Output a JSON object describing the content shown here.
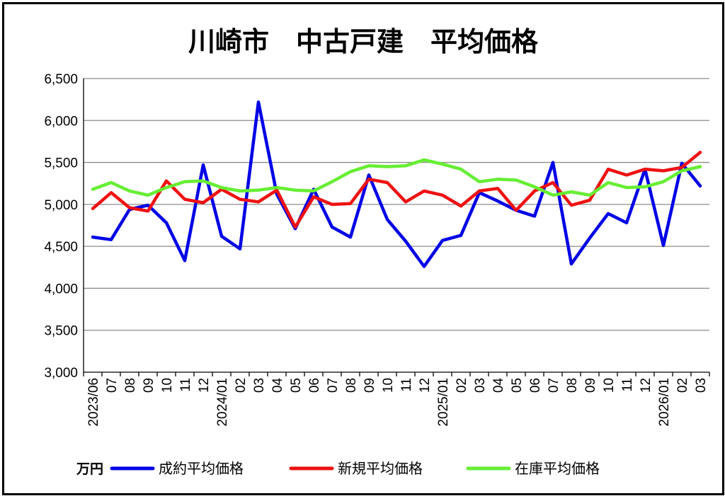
{
  "chart_data": {
    "type": "line",
    "title": "川崎市　中古戸建　平均価格",
    "unit_label": "万円",
    "ylim": [
      3000,
      6500
    ],
    "yticks": [
      3000,
      3500,
      4000,
      4500,
      5000,
      5500,
      6000,
      6500
    ],
    "ytick_labels": [
      "3,000",
      "3,500",
      "4,000",
      "4,500",
      "5,000",
      "5,500",
      "6,000",
      "6,500"
    ],
    "grid": true,
    "legend_position": "bottom",
    "x": [
      "2023/06",
      "07",
      "08",
      "09",
      "10",
      "11",
      "12",
      "2024/01",
      "02",
      "03",
      "04",
      "05",
      "06",
      "07",
      "08",
      "09",
      "10",
      "11",
      "12",
      "2025/01",
      "02",
      "03",
      "04",
      "05",
      "06",
      "07",
      "08",
      "09",
      "10",
      "11",
      "12",
      "2026/01",
      "02",
      "03"
    ],
    "series": [
      {
        "name": "成約平均価格",
        "color": "#0000e6",
        "values": [
          4610,
          4580,
          4940,
          4990,
          4780,
          4330,
          5470,
          4620,
          4470,
          6220,
          5120,
          4710,
          5180,
          4730,
          4610,
          5350,
          4820,
          4560,
          4260,
          4570,
          4630,
          5140,
          5040,
          4930,
          4860,
          5500,
          4290,
          4600,
          4890,
          4780,
          5420,
          4510,
          5490,
          5220
        ]
      },
      {
        "name": "新規平均価格",
        "color": "#ee1111",
        "values": [
          4950,
          5140,
          4960,
          4920,
          5280,
          5060,
          5020,
          5180,
          5060,
          5030,
          5170,
          4730,
          5090,
          5000,
          5010,
          5300,
          5260,
          5030,
          5160,
          5110,
          4980,
          5160,
          5190,
          4930,
          5160,
          5260,
          4990,
          5050,
          5420,
          5350,
          5420,
          5400,
          5440,
          5620
        ]
      },
      {
        "name": "在庫平均価格",
        "color": "#66ee33",
        "values": [
          5180,
          5260,
          5160,
          5110,
          5200,
          5270,
          5280,
          5200,
          5160,
          5170,
          5200,
          5170,
          5160,
          5270,
          5390,
          5460,
          5450,
          5460,
          5530,
          5480,
          5420,
          5270,
          5300,
          5290,
          5210,
          5110,
          5150,
          5110,
          5260,
          5200,
          5210,
          5270,
          5400,
          5450
        ]
      }
    ]
  }
}
